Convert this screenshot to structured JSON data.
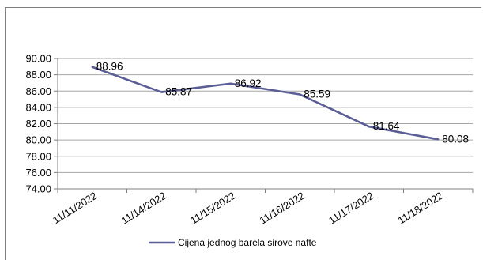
{
  "chart_data": {
    "type": "line",
    "title": "",
    "xlabel": "",
    "ylabel": "",
    "categories": [
      "11/11/2022",
      "11/14/2022",
      "11/15/2022",
      "11/16/2022",
      "11/17/2022",
      "11/18/2022"
    ],
    "series": [
      {
        "name": "Cijena jednog barela sirove nafte",
        "values": [
          88.96,
          85.87,
          86.92,
          85.59,
          81.64,
          80.08
        ],
        "labels": [
          "88.96",
          "85.87",
          "86.92",
          "85.59",
          "81.64",
          "80.08"
        ],
        "color": "#5b5e94"
      }
    ],
    "ylim": [
      74,
      90
    ],
    "ytick_labels": [
      "90.00",
      "88.00",
      "86.00",
      "84.00",
      "82.00",
      "80.00",
      "78.00",
      "76.00",
      "74.00"
    ],
    "grid": true,
    "legend_position": "bottom"
  }
}
